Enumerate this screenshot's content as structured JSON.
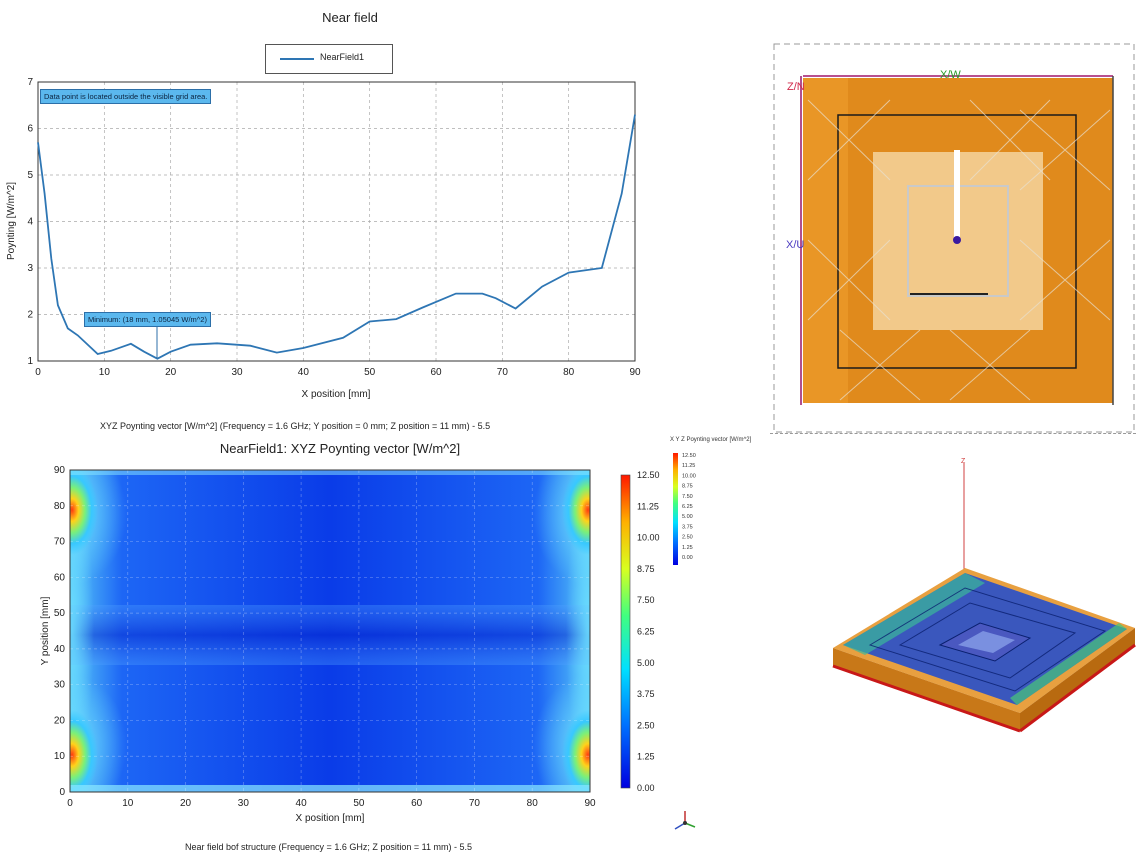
{
  "top_chart": {
    "title": "Near field",
    "legend": [
      "NearField1"
    ],
    "tooltip_outside": "Data point is located outside the visible grid area.",
    "tooltip_minimum": "Minimum: (18 mm, 1.05045 W/m^2)",
    "caption": "XYZ Poynting vector [W/m^2] (Frequency = 1.6 GHz; Y position = 0 mm; Z position = 11 mm) - 5.5"
  },
  "heatmap": {
    "title": "NearField1: XYZ Poynting vector [W/m^2]",
    "caption": "Near field bof structure (Frequency = 1.6 GHz; Z position = 11 mm) - 5.5",
    "colorbar_ticks": [
      "12.50",
      "11.25",
      "10.00",
      "8.75",
      "7.50",
      "6.25",
      "5.00",
      "3.75",
      "2.50",
      "1.25",
      "0.00"
    ]
  },
  "layout_view": {
    "label_top_left": "Z/N",
    "label_top": "X/W",
    "label_left": "X/U"
  },
  "view3d": {
    "legend_title": "X Y Z Poynting vector [W/m^2]",
    "legend_values": [
      "12.50",
      "11.25",
      "10.00",
      "8.75",
      "7.50",
      "6.25",
      "5.00",
      "3.75",
      "2.50",
      "1.25",
      "0.00"
    ],
    "axis_label": "Z"
  },
  "chart_data": [
    {
      "type": "line",
      "title": "Near field",
      "xlabel": "X position [mm]",
      "ylabel": "Poynting [W/m^2]",
      "xlim": [
        0,
        90
      ],
      "ylim": [
        1,
        7
      ],
      "xticks": [
        0,
        10,
        20,
        30,
        40,
        50,
        60,
        70,
        80,
        90
      ],
      "yticks": [
        1,
        2,
        3,
        4,
        5,
        6,
        7
      ],
      "grid": true,
      "legend_position": "top-center",
      "series": [
        {
          "name": "NearField1",
          "color": "#2e76b4",
          "x": [
            0,
            1,
            2,
            3,
            4.5,
            6,
            9,
            11,
            14,
            16,
            18,
            20,
            23,
            27,
            32,
            36,
            40,
            46,
            50,
            54,
            58,
            63,
            67,
            69,
            72,
            76,
            80,
            85,
            88,
            90
          ],
          "y": [
            5.7,
            4.6,
            3.2,
            2.2,
            1.7,
            1.55,
            1.15,
            1.22,
            1.37,
            1.2,
            1.05,
            1.2,
            1.35,
            1.38,
            1.33,
            1.18,
            1.28,
            1.5,
            1.85,
            1.9,
            2.15,
            2.45,
            2.45,
            2.35,
            2.13,
            2.6,
            2.9,
            3.0,
            4.6,
            6.3
          ]
        }
      ]
    },
    {
      "type": "heatmap",
      "title": "NearField1: XYZ Poynting vector [W/m^2]",
      "xlabel": "X position [mm]",
      "ylabel": "Y position [mm]",
      "xlim": [
        0,
        90
      ],
      "ylim": [
        0,
        90
      ],
      "xticks": [
        0,
        10,
        20,
        30,
        40,
        50,
        60,
        70,
        80,
        90
      ],
      "yticks": [
        0,
        10,
        20,
        30,
        40,
        50,
        60,
        70,
        80,
        90
      ],
      "colorbar_range": [
        0,
        12.5
      ],
      "colorbar_ticks": [
        12.5,
        11.25,
        10.0,
        8.75,
        7.5,
        6.25,
        5.0,
        3.75,
        2.5,
        1.25,
        0.0
      ]
    }
  ]
}
